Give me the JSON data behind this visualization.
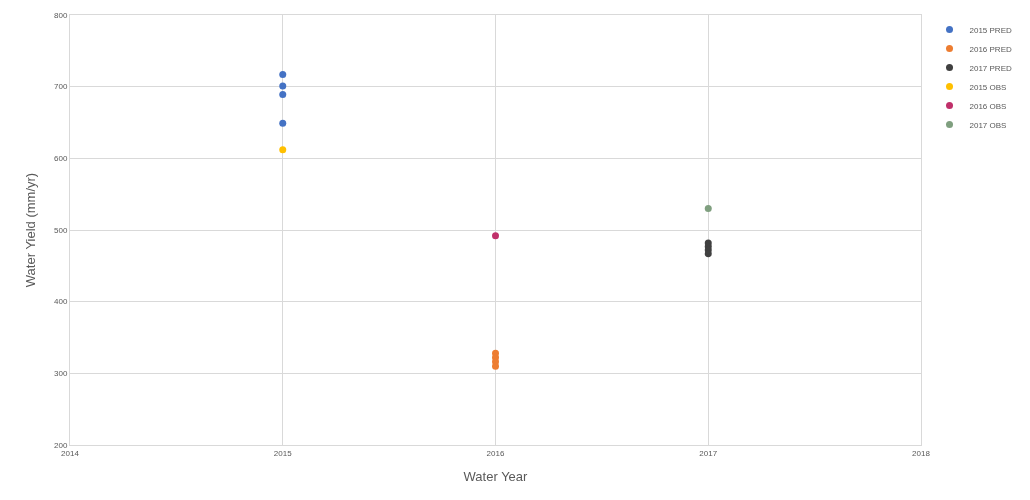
{
  "chart_data": {
    "type": "scatter",
    "xlabel": "Water Year",
    "ylabel": "Water Yield (mm/yr)",
    "xlim": [
      2014,
      2018
    ],
    "xticks": [
      2014,
      2015,
      2016,
      2017,
      2018
    ],
    "ylim": [
      200,
      800
    ],
    "yticks": [
      200,
      300,
      400,
      500,
      600,
      700,
      800
    ],
    "grid": true,
    "legend": "right",
    "marker": "circle",
    "series": [
      {
        "name": "2015 PRED",
        "color": "#4472c4",
        "x": [
          2015,
          2015,
          2015,
          2015
        ],
        "values": [
          717,
          701,
          689,
          649
        ]
      },
      {
        "name": "2016 PRED",
        "color": "#ed7d31",
        "x": [
          2016,
          2016,
          2016,
          2016
        ],
        "values": [
          328,
          322,
          316,
          310
        ]
      },
      {
        "name": "2017 PRED",
        "color": "#404040",
        "x": [
          2017,
          2017,
          2017,
          2017
        ],
        "values": [
          482,
          477,
          472,
          467
        ]
      },
      {
        "name": "2015 OBS",
        "color": "#ffc000",
        "x": [
          2015
        ],
        "values": [
          612
        ]
      },
      {
        "name": "2016 OBS",
        "color": "#c0306a",
        "x": [
          2016
        ],
        "values": [
          492
        ]
      },
      {
        "name": "2017 OBS",
        "color": "#7f9f7f",
        "x": [
          2017
        ],
        "values": [
          530
        ]
      }
    ]
  }
}
